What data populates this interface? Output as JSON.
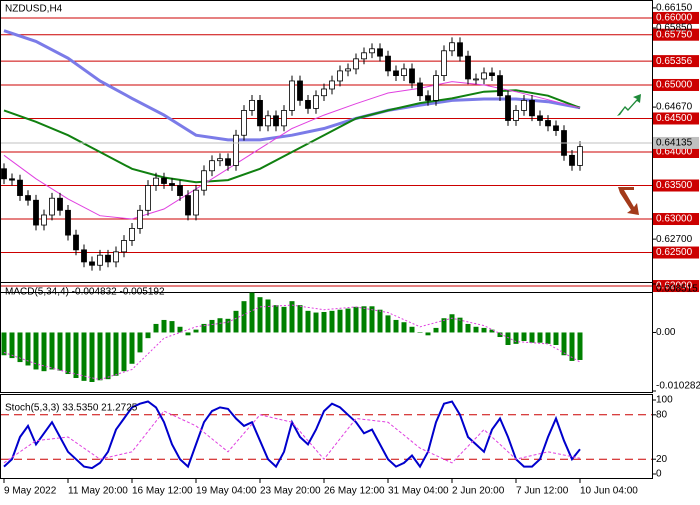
{
  "chart_data": [
    {
      "type": "candlestick",
      "title": "NZDUSD,H4",
      "categories": [
        "9 May 2022",
        null,
        null,
        null,
        null,
        null,
        null,
        null,
        "11 May 20:00",
        null,
        null,
        null,
        null,
        null,
        null,
        null,
        "16 May 12:00",
        null,
        null,
        null,
        null,
        null,
        null,
        null,
        "19 May 04:00",
        null,
        null,
        null,
        null,
        null,
        null,
        null,
        "23 May 20:00",
        null,
        null,
        null,
        null,
        null,
        null,
        null,
        "26 May 12:00",
        null,
        null,
        null,
        null,
        null,
        null,
        null,
        "31 May 04:00",
        null,
        null,
        null,
        null,
        null,
        null,
        null,
        "2 Jun 20:00",
        null,
        null,
        null,
        null,
        null,
        null,
        null,
        "7 Jun 12:00",
        null,
        null,
        null,
        null,
        null,
        null,
        null,
        "10 Jun 04:00"
      ],
      "open": [
        0.6375,
        0.636,
        0.6358,
        0.6335,
        0.6328,
        0.6291,
        0.6306,
        0.6331,
        0.6313,
        0.6276,
        0.6254,
        0.6236,
        0.6231,
        0.6246,
        0.6236,
        0.6251,
        0.6268,
        0.6286,
        0.6313,
        0.635,
        0.6361,
        0.6353,
        0.635,
        0.6335,
        0.6306,
        0.6343,
        0.6372,
        0.6387,
        0.639,
        0.638,
        0.6425,
        0.6462,
        0.6477,
        0.6439,
        0.6454,
        0.6439,
        0.6462,
        0.6506,
        0.6477,
        0.6465,
        0.6484,
        0.6494,
        0.6506,
        0.6521,
        0.6524,
        0.6539,
        0.6548,
        0.6554,
        0.6543,
        0.6521,
        0.6514,
        0.6524,
        0.6503,
        0.6484,
        0.6477,
        0.6514,
        0.6551,
        0.6563,
        0.6543,
        0.6509,
        0.6509,
        0.6518,
        0.6514,
        0.6484,
        0.6447,
        0.6462,
        0.6477,
        0.6454,
        0.6447,
        0.6439,
        0.6432,
        0.6395,
        0.638
      ],
      "high": [
        0.6383,
        0.6368,
        0.6366,
        0.6343,
        0.6336,
        0.6314,
        0.6339,
        0.6339,
        0.6321,
        0.6284,
        0.6262,
        0.6244,
        0.6254,
        0.6254,
        0.6259,
        0.6276,
        0.6294,
        0.6321,
        0.6358,
        0.6369,
        0.6369,
        0.6361,
        0.6358,
        0.6343,
        0.6351,
        0.638,
        0.6395,
        0.6398,
        0.6398,
        0.6433,
        0.647,
        0.6485,
        0.6485,
        0.6462,
        0.6462,
        0.647,
        0.6514,
        0.6514,
        0.6485,
        0.6492,
        0.6502,
        0.6514,
        0.6529,
        0.6532,
        0.6547,
        0.6556,
        0.6562,
        0.6562,
        0.6551,
        0.6529,
        0.6532,
        0.6532,
        0.6511,
        0.6492,
        0.6522,
        0.6559,
        0.6571,
        0.6571,
        0.6551,
        0.6517,
        0.6526,
        0.6526,
        0.6522,
        0.6492,
        0.647,
        0.6485,
        0.6485,
        0.6462,
        0.6455,
        0.6447,
        0.644,
        0.6403,
        0.6416
      ],
      "low": [
        0.6352,
        0.635,
        0.6327,
        0.632,
        0.6283,
        0.6283,
        0.6298,
        0.6305,
        0.6268,
        0.6246,
        0.6228,
        0.6223,
        0.6223,
        0.6228,
        0.6228,
        0.6243,
        0.626,
        0.6278,
        0.6305,
        0.6342,
        0.6345,
        0.6342,
        0.6327,
        0.6298,
        0.6298,
        0.6335,
        0.6364,
        0.6379,
        0.6372,
        0.6372,
        0.6417,
        0.6454,
        0.6431,
        0.6431,
        0.6431,
        0.6431,
        0.6454,
        0.6469,
        0.6457,
        0.6457,
        0.6476,
        0.6486,
        0.6498,
        0.6513,
        0.6516,
        0.6531,
        0.654,
        0.6535,
        0.6513,
        0.6506,
        0.6506,
        0.6495,
        0.6476,
        0.6469,
        0.6469,
        0.6506,
        0.6543,
        0.6535,
        0.6501,
        0.6501,
        0.6501,
        0.6506,
        0.6476,
        0.6439,
        0.6439,
        0.6454,
        0.6446,
        0.6439,
        0.6431,
        0.6424,
        0.6387,
        0.6372,
        0.6372
      ],
      "close": [
        0.636,
        0.6358,
        0.6335,
        0.6328,
        0.6291,
        0.6306,
        0.6331,
        0.6313,
        0.6276,
        0.6254,
        0.6236,
        0.6231,
        0.6246,
        0.6236,
        0.6251,
        0.6268,
        0.6286,
        0.6313,
        0.635,
        0.6361,
        0.6353,
        0.635,
        0.6335,
        0.6306,
        0.6343,
        0.6372,
        0.6387,
        0.639,
        0.638,
        0.6425,
        0.6462,
        0.6477,
        0.6439,
        0.6454,
        0.6439,
        0.6462,
        0.6506,
        0.6477,
        0.6465,
        0.6484,
        0.6494,
        0.6506,
        0.6521,
        0.6524,
        0.6539,
        0.6548,
        0.6554,
        0.6543,
        0.6521,
        0.6514,
        0.6524,
        0.6503,
        0.6484,
        0.6477,
        0.6514,
        0.6551,
        0.6563,
        0.6543,
        0.6509,
        0.6509,
        0.6518,
        0.6514,
        0.6484,
        0.6447,
        0.6462,
        0.6477,
        0.6454,
        0.6447,
        0.6439,
        0.6432,
        0.6395,
        0.638,
        0.6408
      ],
      "series": [
        {
          "color": "#7b7be8",
          "x": [
            0,
            4,
            8,
            12,
            16,
            20,
            24,
            28,
            32,
            36,
            40,
            44,
            48,
            52,
            56,
            60,
            64,
            68,
            72
          ],
          "values": [
            0.6581,
            0.6565,
            0.654,
            0.6506,
            0.648,
            0.6455,
            0.6425,
            0.6418,
            0.6418,
            0.6425,
            0.6435,
            0.645,
            0.6462,
            0.647,
            0.6477,
            0.6479,
            0.6479,
            0.6475,
            0.6466
          ]
        },
        {
          "color": "#108010",
          "x": [
            0,
            4,
            8,
            12,
            16,
            20,
            24,
            28,
            32,
            36,
            40,
            44,
            48,
            52,
            56,
            60,
            64,
            68,
            72
          ],
          "values": [
            0.6462,
            0.6445,
            0.6425,
            0.64,
            0.6375,
            0.6362,
            0.6355,
            0.6358,
            0.6375,
            0.64,
            0.6425,
            0.645,
            0.6462,
            0.6473,
            0.648,
            0.649,
            0.6492,
            0.6484,
            0.6466
          ]
        },
        {
          "color": "#e040e0",
          "x": [
            0,
            4,
            8,
            12,
            16,
            20,
            24,
            28,
            32,
            36,
            40,
            44,
            48,
            52,
            56,
            60,
            64,
            68,
            72
          ],
          "values": [
            0.6395,
            0.636,
            0.633,
            0.6305,
            0.63,
            0.6315,
            0.6345,
            0.6375,
            0.6405,
            0.6435,
            0.6455,
            0.6472,
            0.6488,
            0.6495,
            0.6505,
            0.65,
            0.649,
            0.6478,
            0.6466
          ]
        }
      ],
      "ylim": [
        0.61911,
        0.66253
      ],
      "yticks": [
        {
          "value": 0.6615,
          "label": "0.66150"
        },
        {
          "value": 0.6585,
          "label": "0.65850"
        },
        {
          "value": 0.6467,
          "label": "0.64670"
        },
        {
          "value": 0.627,
          "label": "0.62700"
        }
      ],
      "levels": [
        {
          "value": 0.66,
          "label": "0.66000"
        },
        {
          "value": 0.6575,
          "label": "0.65750"
        },
        {
          "value": 0.65356,
          "label": "0.65356"
        },
        {
          "value": 0.65,
          "label": "0.65000"
        },
        {
          "value": 0.645,
          "label": "0.64500"
        },
        {
          "value": 0.64,
          "label": "0.64000"
        },
        {
          "value": 0.635,
          "label": "0.63500"
        },
        {
          "value": 0.63,
          "label": "0.63000"
        },
        {
          "value": 0.625,
          "label": "0.62500"
        },
        {
          "value": 0.62,
          "label": "0.62000"
        }
      ],
      "level_color": "#cc0000",
      "last_price": {
        "value": 0.64135,
        "label": "0.64135"
      }
    },
    {
      "type": "bar",
      "title": "MACD(5,34,4) -0.004832 -0.005192",
      "color": "#008000",
      "values": [
        -0.004,
        -0.0045,
        -0.0052,
        -0.0058,
        -0.0065,
        -0.0068,
        -0.0065,
        -0.0067,
        -0.0073,
        -0.008,
        -0.0085,
        -0.0087,
        -0.0084,
        -0.0082,
        -0.0076,
        -0.0068,
        -0.0055,
        -0.0035,
        -0.001,
        0.0015,
        0.0022,
        0.002,
        0.001,
        -0.0005,
        0.0005,
        0.0015,
        0.0022,
        0.0025,
        0.0024,
        0.0038,
        0.0055,
        0.007,
        0.0062,
        0.0058,
        0.0048,
        0.0045,
        0.0055,
        0.0048,
        0.0038,
        0.0035,
        0.0036,
        0.0038,
        0.004,
        0.0042,
        0.0045,
        0.0046,
        0.0046,
        0.004,
        0.003,
        0.0022,
        0.0018,
        0.001,
        0.0,
        -0.0005,
        0.0008,
        0.0025,
        0.0032,
        0.0026,
        0.0015,
        0.001,
        0.0008,
        0.0005,
        -0.0008,
        -0.0022,
        -0.002,
        -0.0015,
        -0.0018,
        -0.0018,
        -0.002,
        -0.0022,
        -0.004,
        -0.005,
        -0.004832
      ],
      "series": [
        {
          "color": "#e040e0",
          "x": [
            0,
            4,
            8,
            12,
            16,
            20,
            24,
            28,
            32,
            36,
            40,
            44,
            48,
            52,
            56,
            60,
            64,
            68,
            72
          ],
          "values": [
            -0.0035,
            -0.0055,
            -0.007,
            -0.0083,
            -0.0065,
            -0.001,
            0.001,
            0.0018,
            0.0045,
            0.0048,
            0.004,
            0.0045,
            0.0035,
            0.001,
            0.0025,
            0.0012,
            -0.0016,
            -0.002,
            -0.005192
          ]
        }
      ],
      "ylim": [
        -0.010282,
        0.008515
      ],
      "yticks": [
        0.008515,
        {
          "value": 0,
          "label": "0.00"
        },
        -0.010282
      ]
    },
    {
      "type": "line",
      "title": "Stoch(5,3,3) 33.5350 21.2725",
      "series": [
        {
          "color": "#0000cc",
          "values": [
            10,
            20,
            50,
            65,
            40,
            55,
            70,
            50,
            30,
            20,
            10,
            8,
            15,
            30,
            60,
            75,
            90,
            95,
            98,
            90,
            70,
            40,
            20,
            10,
            40,
            70,
            85,
            90,
            88,
            75,
            65,
            70,
            45,
            20,
            10,
            30,
            70,
            50,
            40,
            60,
            85,
            95,
            90,
            80,
            70,
            55,
            60,
            40,
            20,
            10,
            15,
            25,
            10,
            30,
            70,
            95,
            98,
            80,
            50,
            40,
            30,
            60,
            75,
            50,
            20,
            10,
            10,
            20,
            50,
            75,
            45,
            20,
            33.535
          ]
        },
        {
          "color": "#e040e0",
          "x": [
            0,
            4,
            8,
            12,
            16,
            20,
            24,
            28,
            32,
            36,
            40,
            44,
            48,
            52,
            56,
            60,
            64,
            68,
            72
          ],
          "values": [
            15,
            45,
            50,
            20,
            30,
            85,
            65,
            30,
            80,
            70,
            20,
            75,
            70,
            35,
            15,
            60,
            20,
            30,
            21.2725
          ]
        }
      ],
      "ylim": [
        0,
        100
      ],
      "yticks": [
        0,
        20,
        80,
        100
      ],
      "levels": [
        20,
        80
      ],
      "level_color": "#cc0000"
    }
  ]
}
